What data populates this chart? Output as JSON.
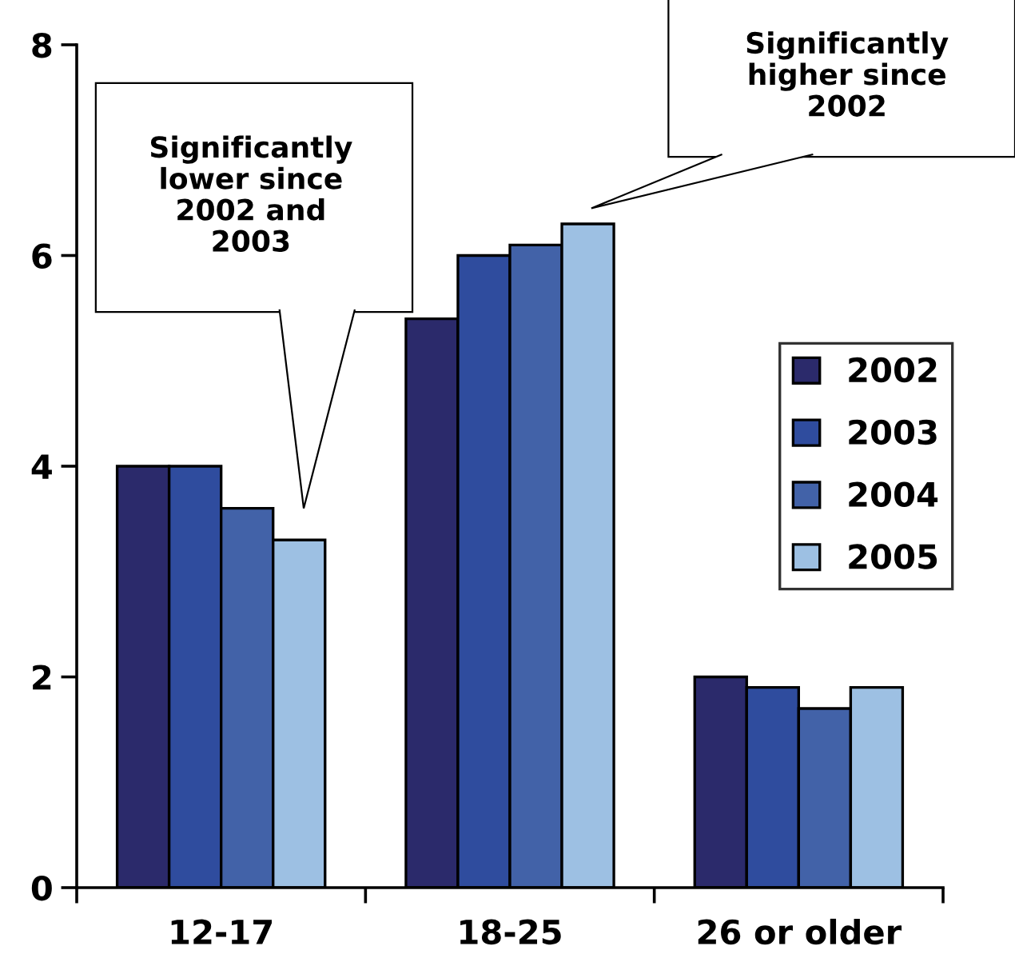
{
  "chart_data": {
    "type": "bar",
    "categories": [
      "12-17",
      "18-25",
      "26 or older"
    ],
    "series": [
      {
        "name": "2002",
        "color": "#2b2a6b",
        "values": [
          4.0,
          5.4,
          2.0
        ]
      },
      {
        "name": "2003",
        "color": "#2f4c9e",
        "values": [
          4.0,
          6.0,
          1.9
        ]
      },
      {
        "name": "2004",
        "color": "#4262a8",
        "values": [
          3.6,
          6.1,
          1.7
        ]
      },
      {
        "name": "2005",
        "color": "#9dc0e3",
        "values": [
          3.3,
          6.3,
          1.9
        ]
      }
    ],
    "ylim": [
      0,
      8
    ],
    "yticks": [
      0,
      2,
      4,
      6,
      8
    ],
    "grid": false,
    "legend": "right",
    "annotations": [
      "Significantly\nlower since\n2002 and\n2003",
      "Significantly\nhigher since\n2002"
    ]
  }
}
